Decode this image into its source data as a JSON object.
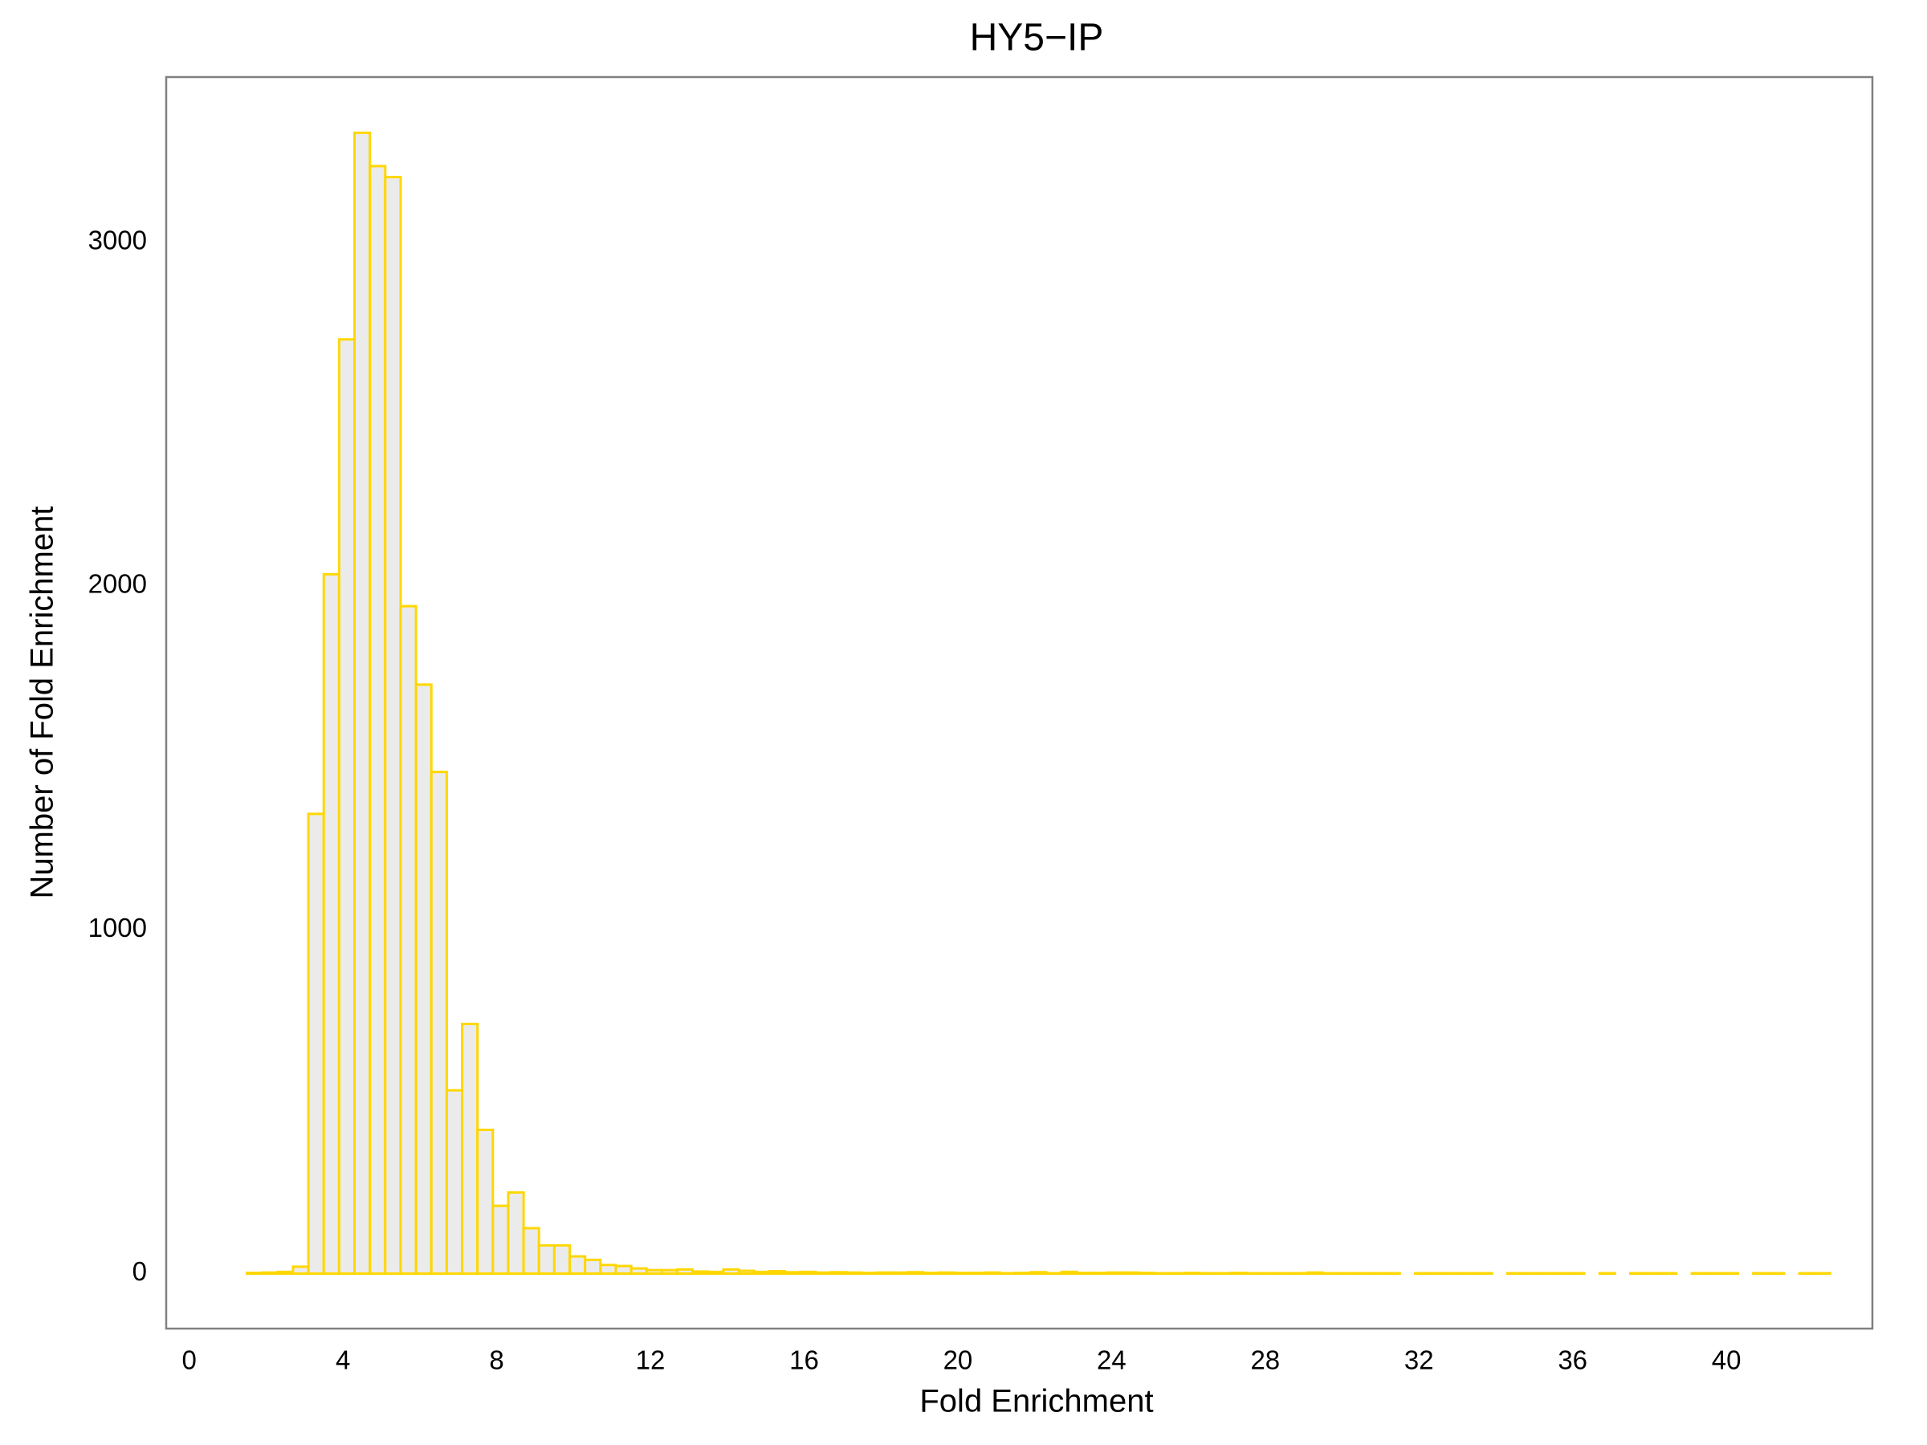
{
  "chart_data": {
    "type": "histogram",
    "title": "HY5−IP",
    "x_label": "Fold Enrichment",
    "y_label": "Number of Fold Enrichment",
    "bins": [
      1.5,
      1.9,
      2.3,
      2.7,
      3.1,
      3.5,
      3.9,
      4.3,
      4.7,
      5.1,
      5.5,
      5.9,
      6.3,
      6.7,
      7.1,
      7.5,
      7.9,
      8.3,
      8.7,
      9.1,
      9.5,
      9.9,
      10.3,
      10.7,
      11.1,
      11.5,
      11.9,
      12.3,
      12.7,
      13.1,
      13.5,
      13.9,
      14.3,
      14.7,
      15.1,
      15.5,
      15.9,
      16.3,
      16.7,
      17.1,
      17.5,
      17.9,
      18.3,
      18.7,
      19.1,
      19.5,
      19.9,
      20.3,
      20.7,
      21.1,
      21.5,
      21.9,
      22.3,
      22.7,
      23.1,
      23.5,
      23.9,
      24.3,
      24.7,
      25.1,
      25.5,
      25.9,
      26.3,
      26.7,
      27.1,
      27.5,
      27.9,
      28.3,
      28.7,
      29.1,
      29.5,
      29.9,
      30.3,
      30.7,
      31.1,
      31.5,
      31.9,
      32.3,
      32.7,
      33.1,
      33.5,
      33.9,
      34.3,
      34.7,
      35.1,
      35.5,
      35.9,
      36.3,
      36.7,
      37.1,
      37.5,
      37.9,
      38.3,
      38.7,
      39.1,
      39.5,
      39.9,
      40.3,
      40.7,
      41.1,
      41.5,
      41.9,
      42.3,
      42.7
    ],
    "values": [
      2,
      3,
      5,
      20,
      1337,
      2034,
      2717,
      3318,
      3221,
      3189,
      1941,
      1713,
      1459,
      533,
      726,
      418,
      197,
      236,
      132,
      82,
      82,
      50,
      40,
      25,
      22,
      15,
      10,
      10,
      12,
      6,
      5,
      12,
      8,
      5,
      7,
      4,
      5,
      3,
      4,
      3,
      2,
      3,
      3,
      4,
      2,
      3,
      2,
      2,
      3,
      1,
      2,
      4,
      1,
      5,
      2,
      2,
      3,
      3,
      2,
      1,
      1,
      2,
      1,
      1,
      2,
      1,
      1,
      1,
      1,
      3,
      1,
      1,
      1,
      1,
      1,
      0,
      1,
      1,
      1,
      1,
      1,
      0,
      1,
      1,
      1,
      1,
      1,
      0,
      1,
      0,
      1,
      1,
      1,
      0,
      1,
      1,
      1,
      0,
      1,
      1,
      0,
      1,
      1
    ],
    "color": "#ebebeb",
    "edgecolor": "#ffd700",
    "xlim": [
      -0.6,
      43.8
    ],
    "xticks": [
      0,
      4,
      8,
      12,
      16,
      20,
      24,
      28,
      32,
      36,
      40
    ],
    "ylim": [
      -160,
      3480
    ],
    "yticks": [
      0,
      1000,
      2000,
      3000
    ],
    "grid": false
  }
}
